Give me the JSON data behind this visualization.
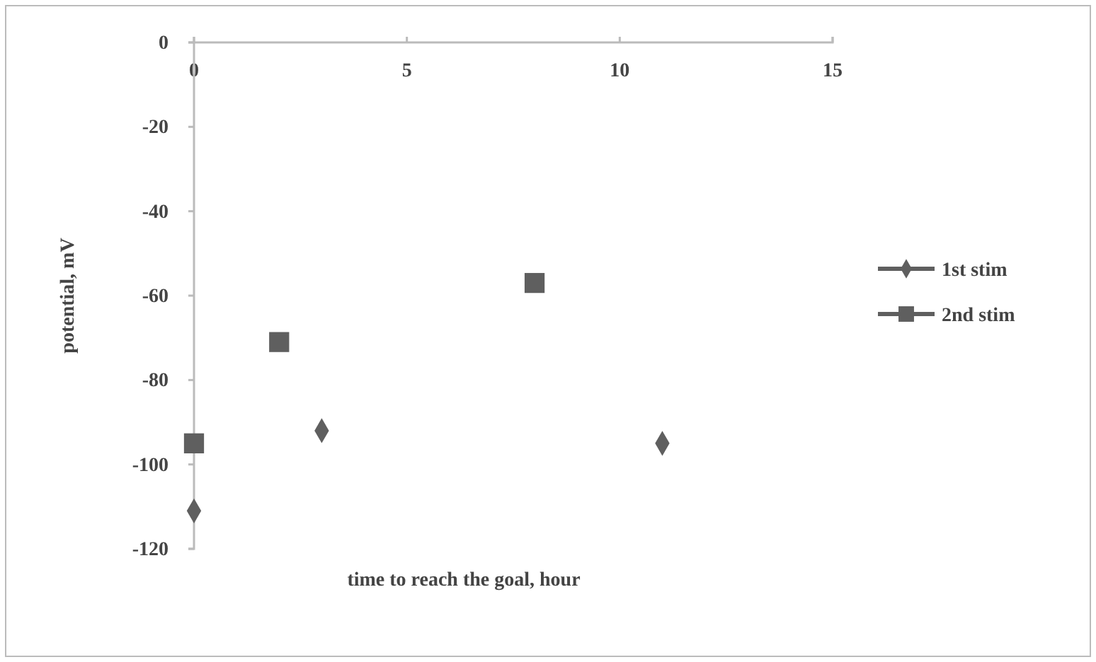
{
  "chart_data": {
    "type": "scatter",
    "xlabel": "time to reach the goal, hour",
    "ylabel": "potential, mV",
    "xlim": [
      0,
      15
    ],
    "xticks": [
      0,
      5,
      10,
      15
    ],
    "ylim": [
      -120,
      0
    ],
    "yticks": [
      0,
      -20,
      -40,
      -60,
      -80,
      -100,
      -120
    ],
    "grid": false,
    "legend": "right",
    "series": [
      {
        "name": "1st stim",
        "color": "#5f5f5f",
        "marker": "diamond",
        "x": [
          0,
          3,
          11
        ],
        "values": [
          -111,
          -92,
          -95
        ]
      },
      {
        "name": "2nd stim",
        "color": "#5f5f5f",
        "marker": "square",
        "x": [
          0,
          2,
          8
        ],
        "values": [
          -95,
          -71,
          -57
        ]
      }
    ]
  }
}
